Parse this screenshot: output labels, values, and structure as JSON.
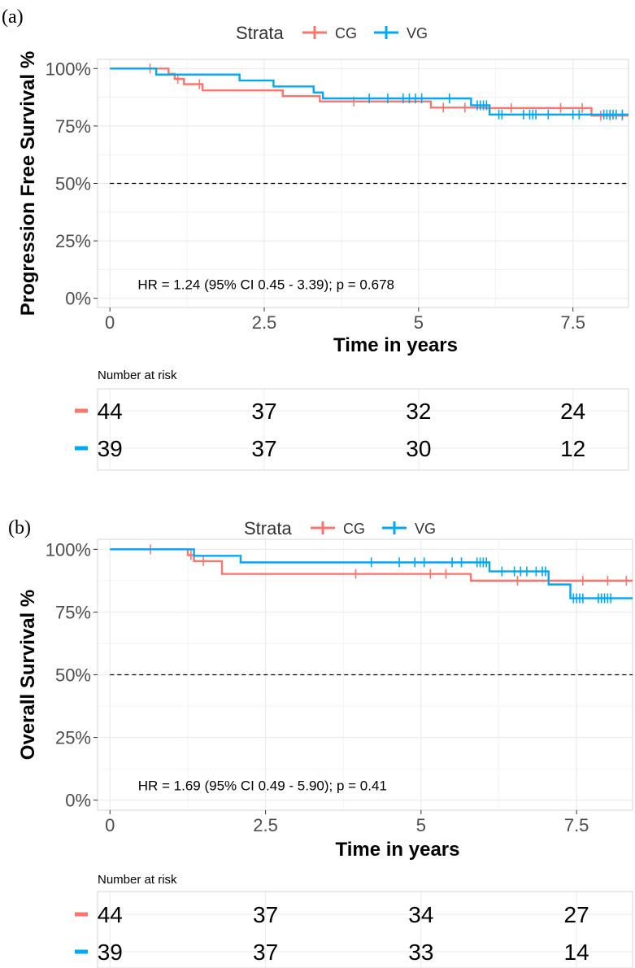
{
  "colors": {
    "cg": "#F8766D",
    "vg": "#00A9F5",
    "grid": "#EBEBEB",
    "panel_border": "#D4D4D4",
    "tick_text": "#4D4D4D"
  },
  "chart_data": [
    {
      "type": "line",
      "panel_label": "(a)",
      "legend_title": "Strata",
      "legend_position": "top",
      "ylabel": "Progression Free Survival %",
      "xlabel": "Time in years",
      "xlim": [
        -0.2,
        8.4
      ],
      "ylim": [
        -0.04,
        1.04
      ],
      "x_ticks": [
        0,
        2.5,
        5,
        7.5
      ],
      "x_tick_labels": [
        "0",
        "2.5",
        "5",
        "7.5"
      ],
      "y_ticks": [
        0,
        0.25,
        0.5,
        0.75,
        1.0
      ],
      "y_tick_labels": [
        "0%",
        "25%",
        "50%",
        "75%",
        "100%"
      ],
      "reference_line_y": 0.5,
      "annotation": "HR = 1.24 (95% CI 0.45 - 3.39); p = 0.678",
      "grid": true,
      "series": [
        {
          "name": "CG",
          "color": "#F8766D",
          "steps": [
            [
              0,
              1.0
            ],
            [
              0.95,
              0.977
            ],
            [
              1.05,
              0.955
            ],
            [
              1.2,
              0.932
            ],
            [
              1.5,
              0.905
            ],
            [
              2.8,
              0.88
            ],
            [
              3.4,
              0.857
            ],
            [
              5.2,
              0.83
            ],
            [
              6.1,
              0.828
            ],
            [
              7.8,
              0.795
            ],
            [
              8.4,
              0.795
            ]
          ],
          "censors": [
            0.65,
            1.1,
            1.45,
            3.95,
            5.4,
            5.75,
            6.5,
            7.3,
            7.65,
            7.95,
            8.1,
            8.3
          ]
        },
        {
          "name": "VG",
          "color": "#00A9F5",
          "steps": [
            [
              0,
              1.0
            ],
            [
              0.75,
              0.974
            ],
            [
              2.1,
              0.948
            ],
            [
              2.65,
              0.922
            ],
            [
              3.3,
              0.896
            ],
            [
              3.45,
              0.87
            ],
            [
              5.85,
              0.84
            ],
            [
              6.15,
              0.8
            ],
            [
              8.4,
              0.8
            ]
          ],
          "censors": [
            4.2,
            4.5,
            4.75,
            4.85,
            4.95,
            5.05,
            5.5,
            5.95,
            6.0,
            6.05,
            6.1,
            6.3,
            6.35,
            6.7,
            6.8,
            6.85,
            6.9,
            7.1,
            7.5,
            7.6,
            8.0,
            8.05,
            8.1,
            8.15,
            8.2,
            8.3
          ]
        }
      ],
      "risk_table": {
        "title": "Number at risk",
        "rows": [
          {
            "name": "CG",
            "values": [
              44,
              37,
              32,
              24
            ]
          },
          {
            "name": "VG",
            "values": [
              39,
              37,
              30,
              12
            ]
          }
        ]
      }
    },
    {
      "type": "line",
      "panel_label": "(b)",
      "legend_title": "Strata",
      "legend_position": "top",
      "ylabel": "Overall Survival %",
      "xlabel": "Time in years",
      "xlim": [
        -0.2,
        8.4
      ],
      "ylim": [
        -0.04,
        1.04
      ],
      "x_ticks": [
        0,
        2.5,
        5,
        7.5
      ],
      "x_tick_labels": [
        "0",
        "2.5",
        "5",
        "7.5"
      ],
      "y_ticks": [
        0,
        0.25,
        0.5,
        0.75,
        1.0
      ],
      "y_tick_labels": [
        "0%",
        "25%",
        "50%",
        "75%",
        "100%"
      ],
      "reference_line_y": 0.5,
      "annotation": "HR = 1.69 (95% CI 0.49 - 5.90); p = 0.41",
      "grid": true,
      "series": [
        {
          "name": "CG",
          "color": "#F8766D",
          "steps": [
            [
              0,
              1.0
            ],
            [
              1.25,
              0.977
            ],
            [
              1.35,
              0.953
            ],
            [
              1.8,
              0.902
            ],
            [
              5.8,
              0.875
            ],
            [
              8.4,
              0.875
            ]
          ],
          "censors": [
            0.65,
            1.3,
            1.5,
            3.95,
            5.15,
            5.4,
            6.55,
            7.6,
            8.0,
            8.3
          ]
        },
        {
          "name": "VG",
          "color": "#00A9F5",
          "steps": [
            [
              0,
              1.0
            ],
            [
              1.35,
              0.974
            ],
            [
              2.1,
              0.948
            ],
            [
              6.1,
              0.912
            ],
            [
              7.05,
              0.86
            ],
            [
              7.4,
              0.805
            ],
            [
              8.4,
              0.805
            ]
          ],
          "censors": [
            4.2,
            4.65,
            4.9,
            5.05,
            5.5,
            5.65,
            5.9,
            5.95,
            6.0,
            6.05,
            6.3,
            6.5,
            6.6,
            6.7,
            6.85,
            6.95,
            7.0,
            7.45,
            7.5,
            7.55,
            7.6,
            7.85,
            7.9,
            7.95,
            8.0,
            8.05
          ]
        }
      ],
      "risk_table": {
        "title": "Number at risk",
        "rows": [
          {
            "name": "CG",
            "values": [
              44,
              37,
              34,
              27
            ]
          },
          {
            "name": "VG",
            "values": [
              39,
              37,
              33,
              14
            ]
          }
        ]
      }
    }
  ]
}
